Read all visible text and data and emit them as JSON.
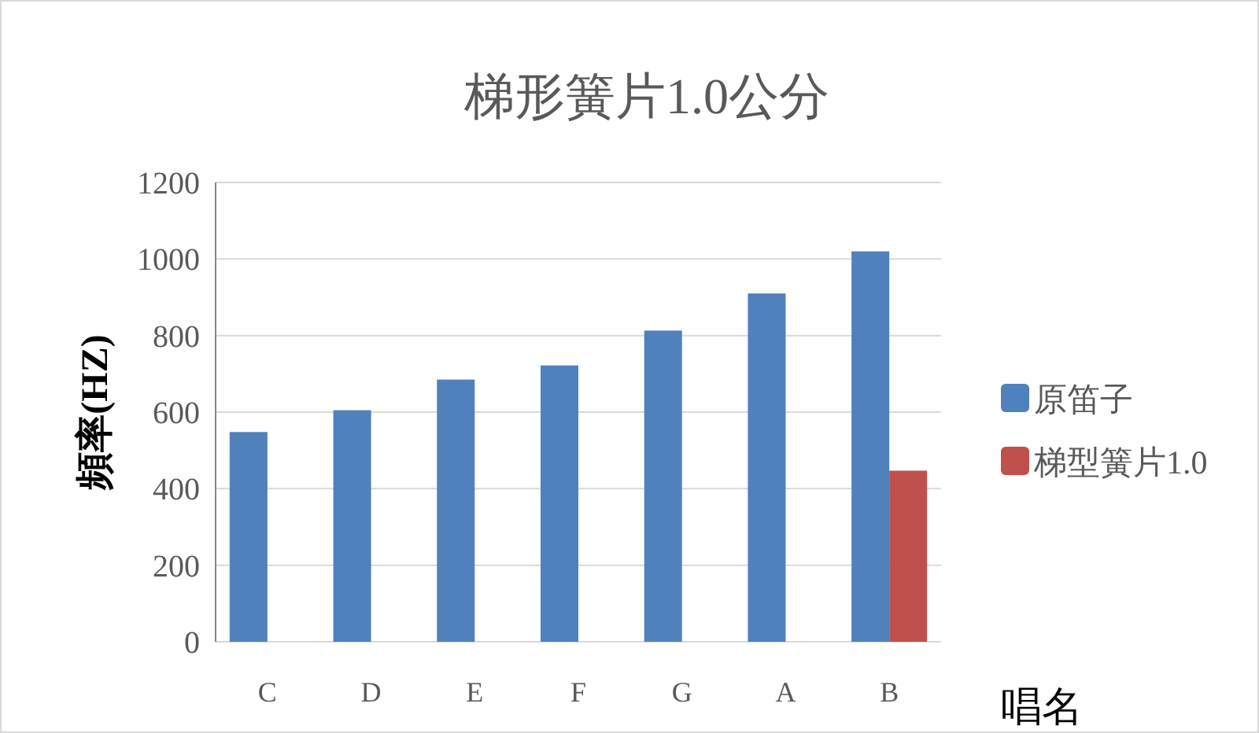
{
  "chart_data": {
    "type": "bar",
    "title": "梯形簧片1.0公分",
    "xlabel": "唱名",
    "ylabel": "頻率(HZ)",
    "categories": [
      "C",
      "D",
      "E",
      "F",
      "G",
      "A",
      "B"
    ],
    "series": [
      {
        "name": "原笛子",
        "color": "#4f81bd",
        "values": [
          548,
          605,
          685,
          722,
          813,
          910,
          1020
        ]
      },
      {
        "name": "梯型簧片1.0",
        "color": "#c0504d",
        "values": [
          null,
          null,
          null,
          null,
          null,
          null,
          447
        ]
      }
    ],
    "ylim": [
      0,
      1200
    ],
    "yticks": [
      0,
      200,
      400,
      600,
      800,
      1000,
      1200
    ],
    "grid": "y",
    "legend": "right"
  }
}
